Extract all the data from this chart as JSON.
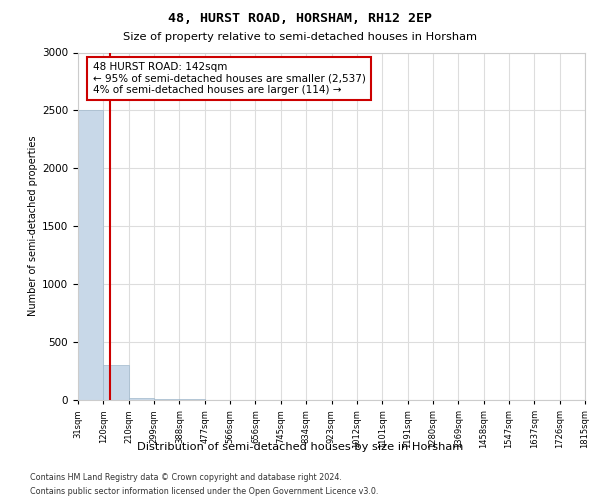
{
  "title1": "48, HURST ROAD, HORSHAM, RH12 2EP",
  "title2": "Size of property relative to semi-detached houses in Horsham",
  "xlabel": "Distribution of semi-detached houses by size in Horsham",
  "ylabel": "Number of semi-detached properties",
  "property_size": 142,
  "annotation_text": "48 HURST ROAD: 142sqm\n← 95% of semi-detached houses are smaller (2,537)\n4% of semi-detached houses are larger (114) →",
  "bin_labels": [
    "31sqm",
    "120sqm",
    "210sqm",
    "299sqm",
    "388sqm",
    "477sqm",
    "566sqm",
    "656sqm",
    "745sqm",
    "834sqm",
    "923sqm",
    "1012sqm",
    "1101sqm",
    "1191sqm",
    "1280sqm",
    "1369sqm",
    "1458sqm",
    "1547sqm",
    "1637sqm",
    "1726sqm",
    "1815sqm"
  ],
  "bin_edges": [
    31,
    120,
    210,
    299,
    388,
    477,
    566,
    656,
    745,
    834,
    923,
    1012,
    1101,
    1191,
    1280,
    1369,
    1458,
    1547,
    1637,
    1726,
    1815
  ],
  "counts": [
    2500,
    300,
    20,
    10,
    5,
    3,
    2,
    1,
    1,
    1,
    1,
    0,
    0,
    0,
    0,
    0,
    0,
    0,
    0,
    0
  ],
  "bar_color": "#c8d8e8",
  "bar_edge_color": "#a0b8cc",
  "vline_color": "#cc0000",
  "box_edge_color": "#cc0000",
  "grid_color": "#dddddd",
  "background_color": "#ffffff",
  "footnote1": "Contains HM Land Registry data © Crown copyright and database right 2024.",
  "footnote2": "Contains public sector information licensed under the Open Government Licence v3.0.",
  "ylim": [
    0,
    3000
  ],
  "yticks": [
    0,
    500,
    1000,
    1500,
    2000,
    2500,
    3000
  ]
}
